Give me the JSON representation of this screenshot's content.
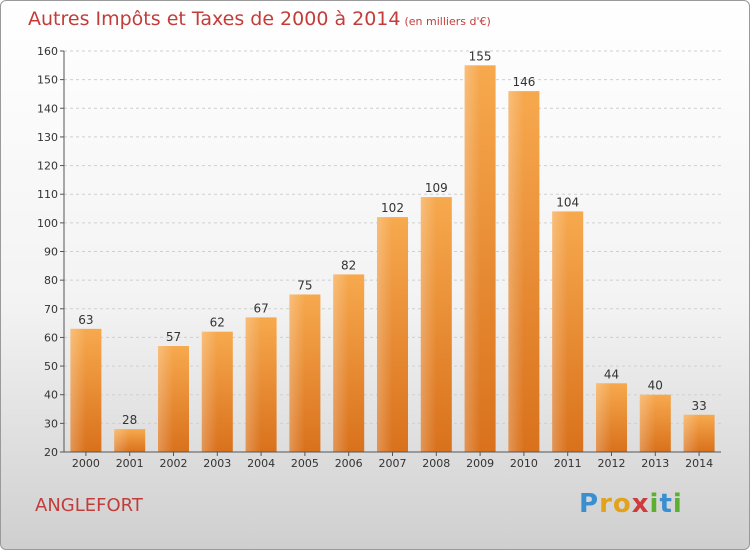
{
  "header": {
    "title": "Autres Impôts et Taxes de 2000 à 2014",
    "unit": "(en milliers d'€)"
  },
  "footer": {
    "commune": "ANGLEFORT",
    "logo_letters": [
      {
        "ch": "P",
        "color": "#3a8fd0"
      },
      {
        "ch": "r",
        "color": "#e2a21a"
      },
      {
        "ch": "o",
        "color": "#e2a21a"
      },
      {
        "ch": "x",
        "color": "#d03a3a"
      },
      {
        "ch": "i",
        "color": "#5bb030"
      },
      {
        "ch": "t",
        "color": "#3a8fd0"
      },
      {
        "ch": "i",
        "color": "#5bb030"
      }
    ]
  },
  "chart_data": {
    "type": "bar",
    "title": "Autres Impôts et Taxes de 2000 à 2014",
    "subtitle": "(en milliers d'€)",
    "categories": [
      "2000",
      "2001",
      "2002",
      "2003",
      "2004",
      "2005",
      "2006",
      "2007",
      "2008",
      "2009",
      "2010",
      "2011",
      "2012",
      "2013",
      "2014"
    ],
    "values": [
      63,
      28,
      57,
      62,
      67,
      75,
      82,
      102,
      109,
      155,
      146,
      104,
      44,
      40,
      33
    ],
    "ylim": [
      20,
      160
    ],
    "yticks": [
      20,
      30,
      40,
      50,
      60,
      70,
      80,
      90,
      100,
      110,
      120,
      130,
      140,
      150,
      160
    ],
    "grid": true,
    "bar_color": "#f39c3f",
    "data_labels": true
  }
}
